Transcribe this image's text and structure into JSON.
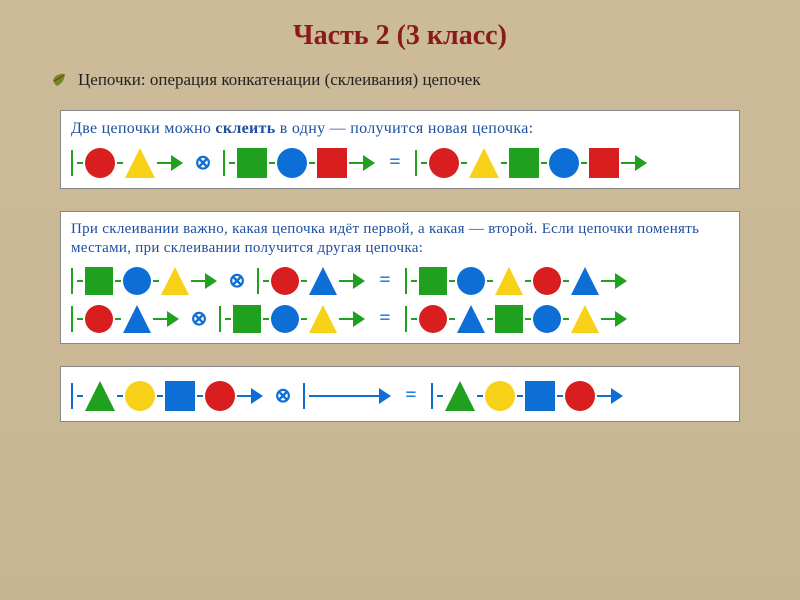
{
  "title": {
    "text": "Часть 2 (3 класс)",
    "color": "#8b1a1a",
    "fontsize": 28
  },
  "bullet": {
    "text": "Цепочки: операция конкатенации (склеивания) цепочек",
    "icon_leaf_color": "#6b8e23",
    "icon_accent_color": "#a52a2a"
  },
  "colors": {
    "red": "#d81e1e",
    "yellow": "#f7d117",
    "green": "#1fa01f",
    "blue": "#0d6fd6",
    "line_green": "#1fa01f",
    "line_blue": "#0d6fd6",
    "op_blue": "#0d6fd6",
    "eq_blue": "#0d6fd6",
    "panel_text": "#1e4fa0"
  },
  "shape_size": 30,
  "panel1": {
    "text": "Две цепочки можно склеить в одну — получится новая цепочка:",
    "fontsize": 16,
    "bold_word": "склеить",
    "equations": [
      {
        "left": {
          "line_color": "green",
          "shapes": [
            [
              "circle",
              "red"
            ],
            [
              "triangle",
              "yellow"
            ]
          ]
        },
        "op": "⊗",
        "right": {
          "line_color": "green",
          "shapes": [
            [
              "square",
              "green"
            ],
            [
              "circle",
              "blue"
            ],
            [
              "square",
              "red"
            ]
          ]
        },
        "eq": "=",
        "result": {
          "line_color": "green",
          "shapes": [
            [
              "circle",
              "red"
            ],
            [
              "triangle",
              "yellow"
            ],
            [
              "square",
              "green"
            ],
            [
              "circle",
              "blue"
            ],
            [
              "square",
              "red"
            ]
          ]
        }
      }
    ]
  },
  "panel2": {
    "text": "При склеивании важно, какая цепочка идёт первой, а какая — второй. Если цепочки поменять местами, при склеивании получится другая цепочка:",
    "fontsize": 15,
    "equations": [
      {
        "left": {
          "line_color": "green",
          "shapes": [
            [
              "square",
              "green"
            ],
            [
              "circle",
              "blue"
            ],
            [
              "triangle",
              "yellow"
            ]
          ]
        },
        "op": "⊗",
        "right": {
          "line_color": "green",
          "shapes": [
            [
              "circle",
              "red"
            ],
            [
              "triangle",
              "blue"
            ]
          ]
        },
        "eq": "=",
        "result": {
          "line_color": "green",
          "shapes": [
            [
              "square",
              "green"
            ],
            [
              "circle",
              "blue"
            ],
            [
              "triangle",
              "yellow"
            ],
            [
              "circle",
              "red"
            ],
            [
              "triangle",
              "blue"
            ]
          ]
        }
      },
      {
        "left": {
          "line_color": "green",
          "shapes": [
            [
              "circle",
              "red"
            ],
            [
              "triangle",
              "blue"
            ]
          ]
        },
        "op": "⊗",
        "right": {
          "line_color": "green",
          "shapes": [
            [
              "square",
              "green"
            ],
            [
              "circle",
              "blue"
            ],
            [
              "triangle",
              "yellow"
            ]
          ]
        },
        "eq": "=",
        "result": {
          "line_color": "green",
          "shapes": [
            [
              "circle",
              "red"
            ],
            [
              "triangle",
              "blue"
            ],
            [
              "square",
              "green"
            ],
            [
              "circle",
              "blue"
            ],
            [
              "triangle",
              "yellow"
            ]
          ]
        }
      }
    ]
  },
  "panel3": {
    "text": "",
    "fontsize": 0,
    "equations": [
      {
        "left": {
          "line_color": "blue",
          "shapes": [
            [
              "triangle",
              "green"
            ],
            [
              "circle",
              "yellow"
            ],
            [
              "square",
              "blue"
            ],
            [
              "circle",
              "red"
            ]
          ]
        },
        "op": "⊗",
        "right": {
          "line_color": "blue",
          "shapes": [],
          "empty_length": 70
        },
        "eq": "=",
        "result": {
          "line_color": "blue",
          "shapes": [
            [
              "triangle",
              "green"
            ],
            [
              "circle",
              "yellow"
            ],
            [
              "square",
              "blue"
            ],
            [
              "circle",
              "red"
            ]
          ]
        }
      }
    ]
  }
}
